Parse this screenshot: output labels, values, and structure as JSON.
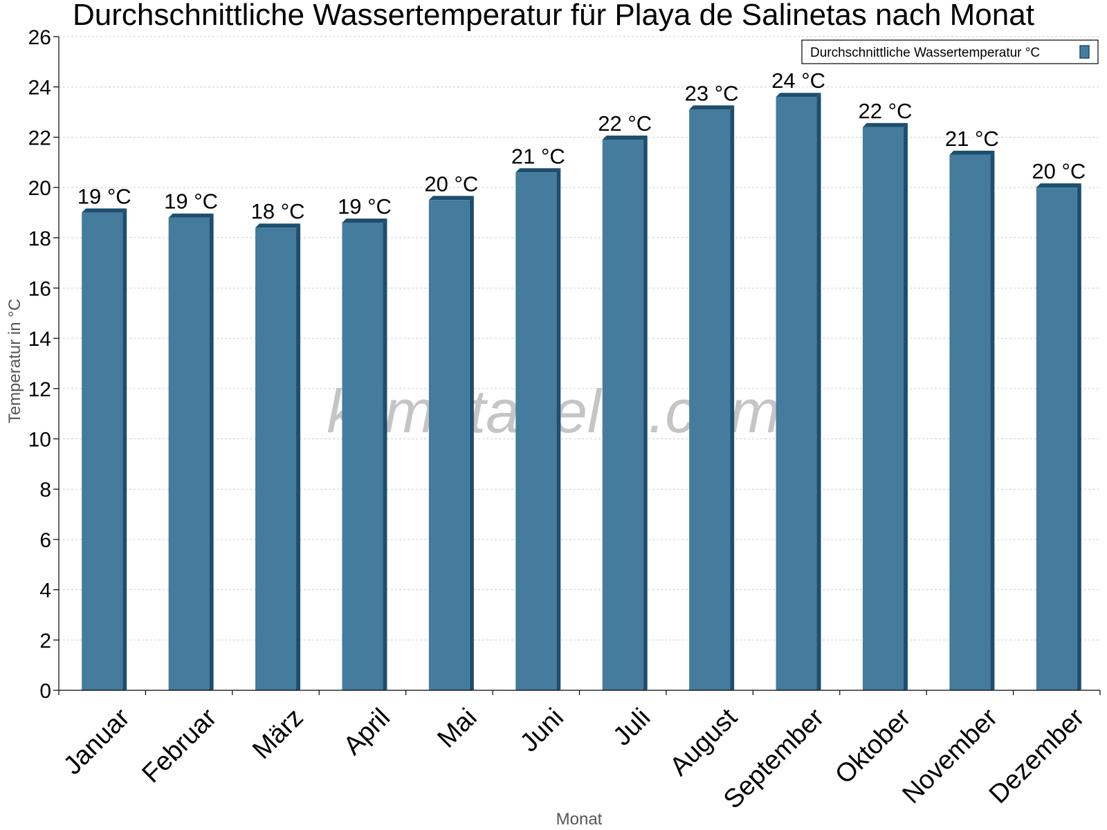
{
  "watermark": "klimatabelle.com",
  "colors": {
    "bar_face": "#457b9d",
    "bar_side": "#1d4e6e",
    "bar_top": "#1d4e6e",
    "grid": "#cccccc",
    "axis": "#000000"
  },
  "chart_data": {
    "type": "bar",
    "title": "Durchschnittliche Wassertemperatur für Playa de Salinetas nach Monat",
    "xlabel": "Monat",
    "ylabel": "Temperatur in °C",
    "ylim": [
      0,
      26
    ],
    "yticks": [
      0,
      2,
      4,
      6,
      8,
      10,
      12,
      14,
      16,
      18,
      20,
      22,
      24,
      26
    ],
    "grid": true,
    "legend_position": "top-right",
    "categories": [
      "Januar",
      "Februar",
      "März",
      "April",
      "Mai",
      "Juni",
      "Juli",
      "August",
      "September",
      "Oktober",
      "November",
      "Dezember"
    ],
    "series": [
      {
        "name": "Durchschnittliche Wassertemperatur °C",
        "values": [
          19.0,
          18.8,
          18.4,
          18.6,
          19.5,
          20.6,
          21.9,
          23.1,
          23.6,
          22.4,
          21.3,
          20.0
        ],
        "data_labels": [
          "19 °C",
          "19 °C",
          "18 °C",
          "19 °C",
          "20 °C",
          "21 °C",
          "22 °C",
          "23 °C",
          "24 °C",
          "22 °C",
          "21 °C",
          "20 °C"
        ]
      }
    ]
  }
}
